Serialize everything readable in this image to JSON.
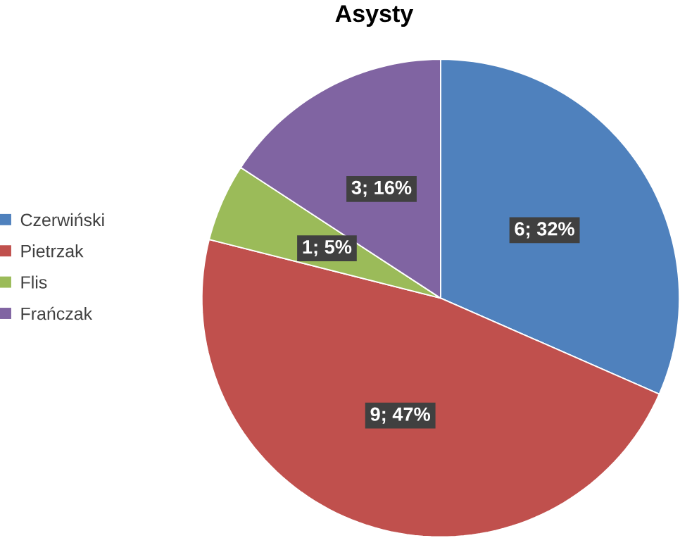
{
  "chart_data": {
    "type": "pie",
    "title": "Asysty",
    "categories": [
      "Czerwiński",
      "Pietrzak",
      "Flis",
      "Frańczak"
    ],
    "values": [
      6,
      9,
      1,
      3
    ],
    "colors": [
      "#4f81bd",
      "#c0504d",
      "#9bbb59",
      "#8064a2"
    ],
    "value_labels": [
      "6; 32%",
      "9; 47%",
      "1; 5%",
      "3; 16%"
    ],
    "legend": "left"
  }
}
